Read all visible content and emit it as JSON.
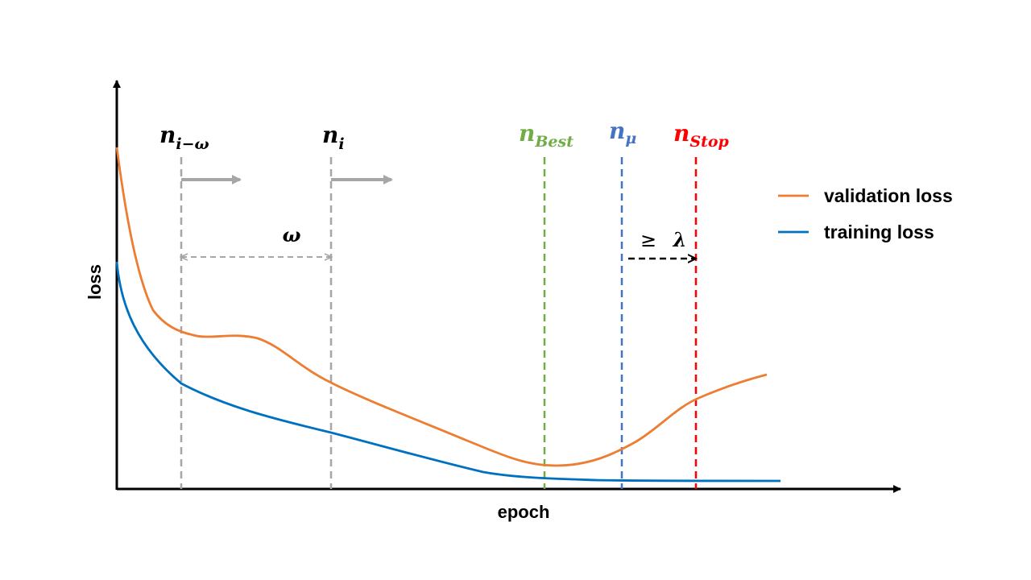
{
  "axes": {
    "x_label": "epoch",
    "y_label": "loss"
  },
  "markers": {
    "n_i_minus_omega": {
      "base": "n",
      "sub": "i−ω",
      "color": "#000000"
    },
    "n_i": {
      "base": "n",
      "sub": "i",
      "color": "#000000"
    },
    "n_best": {
      "base": "n",
      "sub": "Best",
      "color": "#70AD47"
    },
    "n_mu": {
      "base": "n",
      "sub": "μ",
      "color": "#4472C4"
    },
    "n_stop": {
      "base": "n",
      "sub": "Stop",
      "color": "#FF0000"
    }
  },
  "annotations": {
    "omega": "ω",
    "geq": "≥",
    "lambda": "λ"
  },
  "legend": [
    {
      "label": "validation loss",
      "color": "#ED7D31"
    },
    {
      "label": "training loss",
      "color": "#0070C0"
    }
  ],
  "colors": {
    "validation": "#ED7D31",
    "training": "#0070C0",
    "window": "#A6A6A6",
    "axis": "#000000"
  }
}
